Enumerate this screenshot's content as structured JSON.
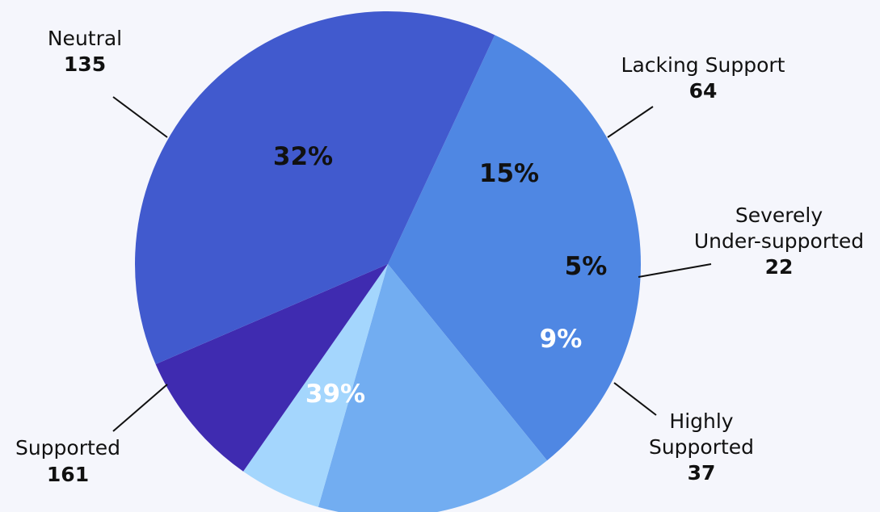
{
  "chart_data": {
    "type": "pie",
    "slices": [
      {
        "name": "Neutral",
        "value": 135,
        "percent_label": "32%",
        "color": "#4f87e3",
        "text_color": "#111111"
      },
      {
        "name": "Lacking Support",
        "value": 64,
        "percent_label": "15%",
        "color": "#72adf1",
        "text_color": "#111111"
      },
      {
        "name": "Severely Under-supported",
        "name_lines": [
          "Severely",
          "Under-supported"
        ],
        "value": 22,
        "percent_label": "5%",
        "color": "#a4d6fd",
        "text_color": "#111111"
      },
      {
        "name": "Highly Supported",
        "name_lines": [
          "Highly",
          "Supported"
        ],
        "value": 37,
        "percent_label": "9%",
        "color": "#3f2bb0",
        "text_color": "#ffffff"
      },
      {
        "name": "Supported",
        "value": 161,
        "percent_label": "39%",
        "color": "#415ace",
        "text_color": "#ffffff"
      }
    ]
  }
}
